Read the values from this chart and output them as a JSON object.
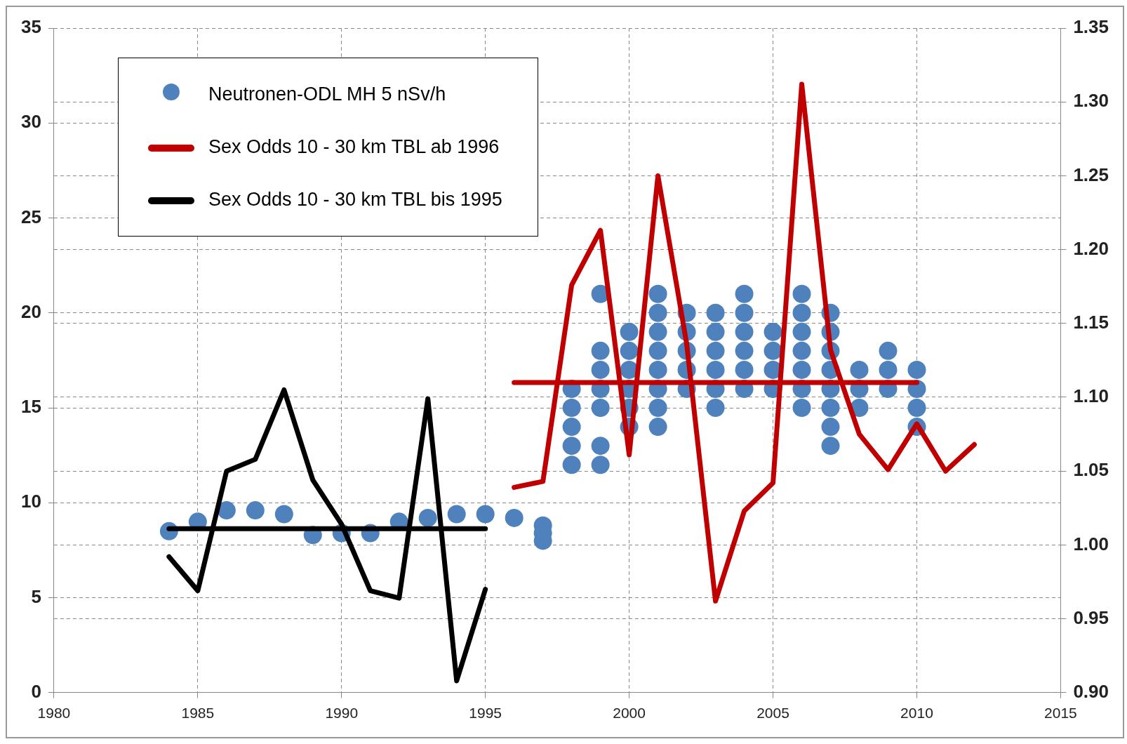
{
  "chart_data": {
    "type": "scatter",
    "xlim": [
      1980,
      2015
    ],
    "xticks": [
      1980,
      1985,
      1990,
      1995,
      2000,
      2005,
      2010,
      2015
    ],
    "ylim": [
      0,
      35
    ],
    "yticks": [
      0,
      5,
      10,
      15,
      20,
      25,
      30,
      35
    ],
    "y2lim": [
      0.9,
      1.35
    ],
    "y2ticks": [
      {
        "value": 0.9,
        "label": "0.90"
      },
      {
        "value": 0.95,
        "label": "0.95"
      },
      {
        "value": 1.0,
        "label": "1.00"
      },
      {
        "value": 1.05,
        "label": "1.05"
      },
      {
        "value": 1.1,
        "label": "1.10"
      },
      {
        "value": 1.15,
        "label": "1.15"
      },
      {
        "value": 1.2,
        "label": "1.20"
      },
      {
        "value": 1.25,
        "label": "1.25"
      },
      {
        "value": 1.3,
        "label": "1.30"
      },
      {
        "value": 1.35,
        "label": "1.35"
      }
    ],
    "grid": true,
    "legend": "top left",
    "series": [
      {
        "name": "Neutronen-ODL MH 5 nSv/h",
        "type": "scatter",
        "marker": "circle",
        "color": "#4f81bd",
        "x": [
          1984,
          1985,
          1986,
          1987,
          1988,
          1989,
          1990,
          1991,
          1992,
          1993,
          1994,
          1995,
          1996,
          1997,
          1997,
          1997,
          1998,
          1998,
          1998,
          1998,
          1998,
          1999,
          1999,
          1999,
          1999,
          1999,
          1999,
          1999,
          2000,
          2000,
          2000,
          2000,
          2000,
          2000,
          2001,
          2001,
          2001,
          2001,
          2001,
          2001,
          2001,
          2001,
          2002,
          2002,
          2002,
          2002,
          2002,
          2003,
          2003,
          2003,
          2003,
          2003,
          2003,
          2004,
          2004,
          2004,
          2004,
          2004,
          2004,
          2005,
          2005,
          2005,
          2005,
          2006,
          2006,
          2006,
          2006,
          2006,
          2006,
          2006,
          2007,
          2007,
          2007,
          2007,
          2007,
          2007,
          2007,
          2007,
          2008,
          2008,
          2008,
          2009,
          2009,
          2009,
          2010,
          2010,
          2010,
          2010
        ],
        "values": [
          8.5,
          9.0,
          9.6,
          9.6,
          9.4,
          8.3,
          8.4,
          8.4,
          9.0,
          9.2,
          9.4,
          9.4,
          9.2,
          8.8,
          8.4,
          8.0,
          12,
          13,
          14,
          15,
          16,
          21,
          18,
          17,
          16,
          15,
          13,
          12,
          19,
          18,
          17,
          16,
          15,
          14,
          21,
          20,
          19,
          18,
          17,
          16,
          15,
          14,
          20,
          19,
          18,
          17,
          16,
          20,
          19,
          18,
          17,
          16,
          15,
          21,
          20,
          19,
          18,
          17,
          16,
          19,
          18,
          17,
          16,
          21,
          20,
          19,
          18,
          17,
          16,
          15,
          20,
          19,
          18,
          17,
          16,
          15,
          14,
          13,
          17,
          16,
          15,
          18,
          17,
          16,
          17,
          16,
          15,
          14
        ]
      },
      {
        "name": "Sex Odds 10 - 30 km TBL ab 1996",
        "type": "line",
        "marker": "none",
        "axis": "y2",
        "color": "#c00000",
        "x": [
          1996,
          1997,
          1998,
          1999,
          2000,
          2001,
          2002,
          2003,
          2004,
          2005,
          2006,
          2007,
          2008,
          2009,
          2010,
          2011,
          2012
        ],
        "values": [
          1.039,
          1.043,
          1.176,
          1.213,
          1.061,
          1.25,
          1.136,
          0.962,
          1.023,
          1.042,
          1.312,
          1.132,
          1.075,
          1.051,
          1.082,
          1.05,
          1.068
        ]
      },
      {
        "name": "Sex Odds 10 - 30 km TBL bis 1995",
        "type": "line",
        "marker": "none",
        "axis": "y2",
        "color": "#000000",
        "x": [
          1984,
          1985,
          1986,
          1987,
          1988,
          1989,
          1990,
          1991,
          1992,
          1993,
          1994,
          1995
        ],
        "values": [
          0.992,
          0.969,
          1.05,
          1.058,
          1.105,
          1.044,
          1.014,
          0.969,
          0.964,
          1.099,
          0.908,
          0.97
        ]
      },
      {
        "type": "line",
        "marker": "none",
        "axis": "y2",
        "color": "#c00000",
        "x": [
          1996,
          2010
        ],
        "values": [
          1.11,
          1.11
        ]
      },
      {
        "type": "line",
        "marker": "none",
        "axis": "y2",
        "color": "#000000",
        "x": [
          1984,
          1995
        ],
        "values": [
          1.011,
          1.011
        ]
      }
    ]
  }
}
